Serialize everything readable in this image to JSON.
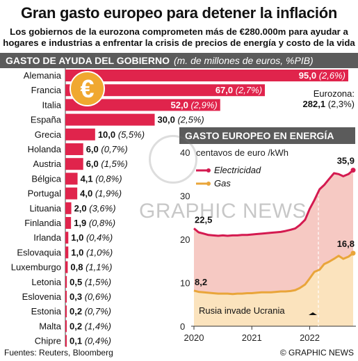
{
  "header": {
    "title": "Gran gasto europeo para detener la inflación",
    "subtitle": "Los gobiernos de la eurozona comprometen más de €280.000m para ayudar a hogares e industrias a enfrentar la crisis de precios de energía y costo de la vida"
  },
  "left_chart": {
    "heading": "GASTO DE AYUDA DEL GOBIERNO",
    "units": "(m. de millones de euros, %PIB)",
    "eurozone_label": "Eurozona:",
    "eurozone_value": "282,1",
    "eurozone_pct": "(2,3%)",
    "euro_symbol": "€"
  },
  "right_chart": {
    "heading": "GASTO EUROPEO EN ENERGÍA",
    "units_label": "centavos de euro /kWh",
    "annotation": "Rusia invade Ucrania",
    "start_elec_label": "22,5",
    "start_gas_label": "8,2",
    "end_elec_label": "35,9",
    "end_gas_label": "16,8"
  },
  "watermark": "GRAPHIC NEWS",
  "footer": {
    "source": "Fuentes: Reuters, Bloomberg",
    "credit": "© GRAPHIC NEWS"
  },
  "colors": {
    "bar": "#e0244c",
    "electricity": "#d41a50",
    "gas": "#e9a53a",
    "elec_fill": "#f6c9c3",
    "gas_fill": "#fbe3bd",
    "band": "#5b5b5b"
  },
  "chart_data": [
    {
      "type": "bar",
      "orientation": "horizontal",
      "title": "GASTO DE AYUDA DEL GOBIERNO",
      "subtitle": "(m. de millones de euros, %PIB)",
      "categories": [
        "Alemania",
        "Francia",
        "Italia",
        "España",
        "Grecia",
        "Holanda",
        "Austria",
        "Bélgica",
        "Portugal",
        "Lituania",
        "Finlandia",
        "Irlanda",
        "Eslovaquia",
        "Luxemburgo",
        "Letonia",
        "Eslovenia",
        "Estonia",
        "Malta",
        "Chipre"
      ],
      "values": [
        95.0,
        67.0,
        52.0,
        30.0,
        10.0,
        6.0,
        6.0,
        4.1,
        4.0,
        2.0,
        1.9,
        1.0,
        1.0,
        0.8,
        0.5,
        0.3,
        0.2,
        0.2,
        0.1
      ],
      "value_labels": [
        "95,0",
        "67,0",
        "52,0",
        "30,0",
        "10,0",
        "6,0",
        "6,0",
        "4,1",
        "4,0",
        "2,0",
        "1,9",
        "1,0",
        "1,0",
        "0,8",
        "0,5",
        "0,3",
        "0,2",
        "0,2",
        "0,1"
      ],
      "pct_labels": [
        "(2,6%)",
        "(2,7%)",
        "(2,9%)",
        "(2,5%)",
        "(5,5%)",
        "(0,7%)",
        "(1,5%)",
        "(0,8%)",
        "(1,9%)",
        "(3,6%)",
        "(0,8%)",
        "(0,4%)",
        "(1,0%)",
        "(1,1%)",
        "(1,5%)",
        "(0,6%)",
        "(0,7%)",
        "(1,4%)",
        "(0,4%)"
      ]
    },
    {
      "type": "area",
      "title": "GASTO EUROPEO EN ENERGÍA",
      "ylabel": "centavos de euro /kWh",
      "ylim": [
        0,
        40
      ],
      "yticks": [
        0,
        10,
        20,
        30,
        40
      ],
      "xlim": [
        2020.0,
        2022.75
      ],
      "xticks": [
        2020,
        2021,
        2022
      ],
      "grid": false,
      "legend": "top-left",
      "annotation": {
        "text": "Rusia invade Ucrania",
        "x": 2022.15
      },
      "series": [
        {
          "name": "Electricidad",
          "x": [
            2020.0,
            2020.08,
            2020.17,
            2020.25,
            2020.33,
            2020.42,
            2020.5,
            2020.58,
            2020.67,
            2020.75,
            2020.83,
            2020.92,
            2021.0,
            2021.08,
            2021.17,
            2021.25,
            2021.33,
            2021.42,
            2021.5,
            2021.58,
            2021.67,
            2021.75,
            2021.83,
            2021.92,
            2022.0,
            2022.08,
            2022.17,
            2022.25,
            2022.33,
            2022.42,
            2022.5,
            2022.58,
            2022.67,
            2022.75
          ],
          "values": [
            22.5,
            21.6,
            21.3,
            21.0,
            20.9,
            20.8,
            20.9,
            20.8,
            20.9,
            20.9,
            21.0,
            21.0,
            21.1,
            21.2,
            21.3,
            21.4,
            21.5,
            21.6,
            21.7,
            21.9,
            22.2,
            22.5,
            23.3,
            24.5,
            27.0,
            29.0,
            31.5,
            32.5,
            33.8,
            35.2,
            35.0,
            34.5,
            35.0,
            35.9
          ]
        },
        {
          "name": "Gas",
          "x": [
            2020.0,
            2020.08,
            2020.17,
            2020.25,
            2020.33,
            2020.42,
            2020.5,
            2020.58,
            2020.67,
            2020.75,
            2020.83,
            2020.92,
            2021.0,
            2021.08,
            2021.17,
            2021.25,
            2021.33,
            2021.42,
            2021.5,
            2021.58,
            2021.67,
            2021.75,
            2021.83,
            2021.92,
            2022.0,
            2022.08,
            2022.17,
            2022.25,
            2022.33,
            2022.42,
            2022.5,
            2022.58,
            2022.67,
            2022.75
          ],
          "values": [
            8.2,
            7.9,
            7.8,
            7.7,
            7.6,
            7.5,
            7.5,
            7.5,
            7.4,
            7.5,
            7.5,
            7.6,
            7.6,
            7.7,
            7.8,
            7.8,
            7.8,
            7.9,
            8.0,
            8.0,
            8.1,
            8.3,
            8.8,
            9.6,
            11.0,
            12.5,
            13.0,
            14.3,
            14.8,
            15.5,
            16.2,
            15.5,
            16.0,
            16.8
          ]
        }
      ]
    }
  ]
}
